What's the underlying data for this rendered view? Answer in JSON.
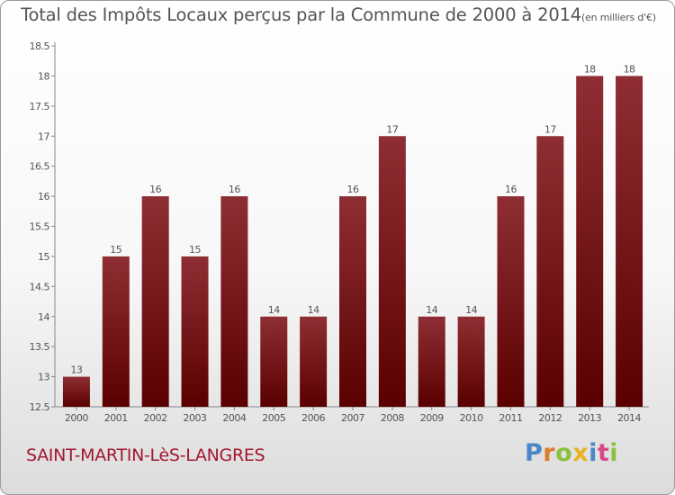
{
  "title": {
    "main": "Total des Impôts Locaux perçus par la Commune de 2000 à 2014",
    "unit": "(en milliers d'€)"
  },
  "town": "SAINT-MARTIN-LèS-LANGRES",
  "logo": {
    "text": "Proxiti",
    "letters": [
      {
        "ch": "P",
        "color": "#4a86c8"
      },
      {
        "ch": "r",
        "color": "#e07b2a"
      },
      {
        "ch": "o",
        "color": "#8cc040"
      },
      {
        "ch": "x",
        "color": "#e8b420"
      },
      {
        "ch": "i",
        "color": "#4a86c8"
      },
      {
        "ch": "t",
        "color": "#d64a8a"
      },
      {
        "ch": "i",
        "color": "#8cc040"
      }
    ]
  },
  "colors": {
    "bar_top": "#8e2e34",
    "bar_bottom": "#5a0000",
    "axis": "#888888",
    "grid": "#cccccc",
    "text": "#555555"
  },
  "chart_data": {
    "type": "bar",
    "categories": [
      "2000",
      "2001",
      "2002",
      "2003",
      "2004",
      "2005",
      "2006",
      "2007",
      "2008",
      "2009",
      "2010",
      "2011",
      "2012",
      "2013",
      "2014"
    ],
    "values": [
      13,
      15,
      16,
      15,
      16,
      14,
      14,
      16,
      17,
      14,
      14,
      16,
      17,
      18,
      18
    ],
    "labels": [
      "13",
      "15",
      "16",
      "15",
      "16",
      "14",
      "14",
      "16",
      "17",
      "14",
      "14",
      "16",
      "17",
      "18",
      "18"
    ],
    "yticks": [
      "12.5",
      "13",
      "13.5",
      "14",
      "14.5",
      "15",
      "15.5",
      "16",
      "16.5",
      "17",
      "17.5",
      "18",
      "18.5"
    ],
    "ylim": [
      12.5,
      18.5
    ],
    "grid": false
  }
}
